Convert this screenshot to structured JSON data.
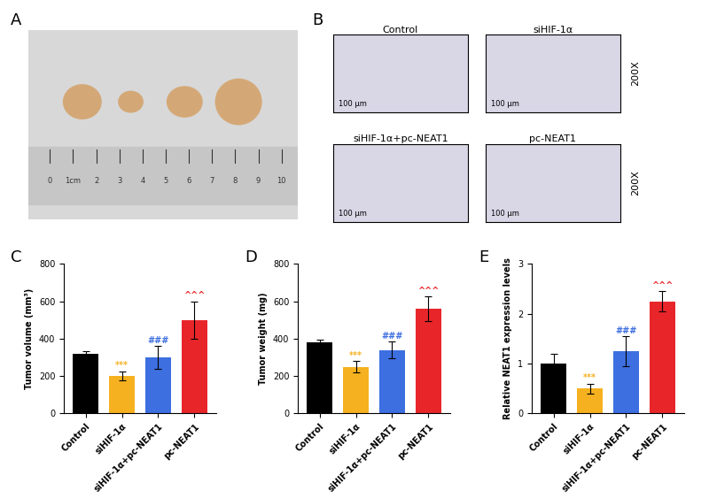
{
  "panel_labels": [
    "A",
    "B",
    "C",
    "D",
    "E"
  ],
  "photo_A": {
    "ruler_labels": [
      "0",
      "1cm",
      "2",
      "3",
      "4",
      "5",
      "6",
      "7",
      "8",
      "9",
      "10"
    ]
  },
  "photo_B": {
    "images": [
      {
        "title": "Control"
      },
      {
        "title": "siHIF-1α"
      },
      {
        "title": "siHIF-1α+pc-NEAT1"
      },
      {
        "title": "pc-NEAT1"
      }
    ],
    "scale_bar": "100 μm",
    "magnification": "200X"
  },
  "chart_data": [
    {
      "type": "bar",
      "y_label": "Tumor volume (mm³)",
      "categories": [
        "Control",
        "siHIF-1α",
        "siHIF-1α+pc-NEAT1",
        "pc-NEAT1"
      ],
      "values": [
        320,
        200,
        300,
        500
      ],
      "errors": [
        15,
        25,
        60,
        100
      ],
      "colors": [
        "#000000",
        "#f5b120",
        "#3d6fe0",
        "#e8262a"
      ],
      "significance": [
        null,
        "***",
        "###",
        "^^^"
      ],
      "ylim": [
        0,
        800
      ],
      "yticks": [
        0,
        200,
        400,
        600,
        800
      ]
    },
    {
      "type": "bar",
      "y_label": "Tumor weight (mg)",
      "categories": [
        "Control",
        "siHIF-1α",
        "siHIF-1α+pc-NEAT1",
        "pc-NEAT1"
      ],
      "values": [
        380,
        250,
        340,
        560
      ],
      "errors": [
        15,
        30,
        45,
        65
      ],
      "colors": [
        "#000000",
        "#f5b120",
        "#3d6fe0",
        "#e8262a"
      ],
      "significance": [
        null,
        "***",
        "###",
        "^^^"
      ],
      "ylim": [
        0,
        800
      ],
      "yticks": [
        0,
        200,
        400,
        600,
        800
      ]
    },
    {
      "type": "bar",
      "y_label": "Relative NEAT1 expression levels",
      "categories": [
        "Control",
        "siHIF-1α",
        "siHIF-1α+pc-NEAT1",
        "pc-NEAT1"
      ],
      "values": [
        1.0,
        0.5,
        1.25,
        2.25
      ],
      "errors": [
        0.2,
        0.1,
        0.3,
        0.2
      ],
      "colors": [
        "#000000",
        "#f5b120",
        "#3d6fe0",
        "#e8262a"
      ],
      "significance": [
        null,
        "***",
        "###",
        "^^^"
      ],
      "ylim": [
        0,
        3
      ],
      "yticks": [
        0,
        1,
        2,
        3
      ]
    }
  ]
}
